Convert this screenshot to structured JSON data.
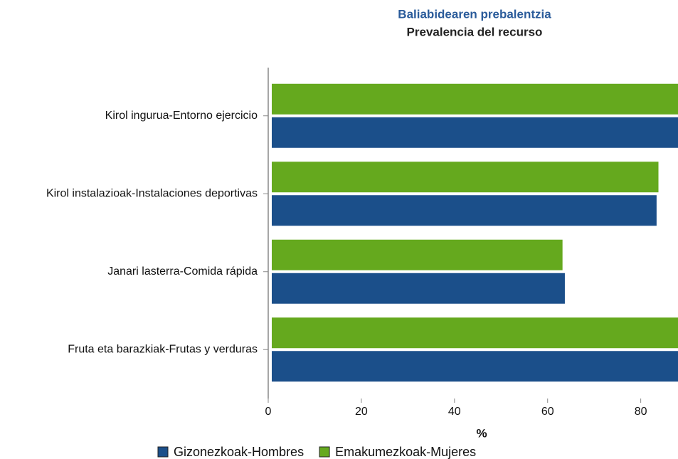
{
  "chart_data": {
    "type": "hbar",
    "title": "Baliabidearen prebalentzia",
    "subtitle": "Prevalencia del recurso",
    "xlabel": "%",
    "categories": [
      "Kirol ingurua-Entorno ejercicio",
      "Kirol instalazioak-Instalaciones deportivas",
      "Janari lasterra-Comida rápida",
      "Fruta eta barazkiak-Frutas y verduras"
    ],
    "series": [
      {
        "name": "Gizonezkoak-Hombres",
        "color": "#1b4f8a",
        "values": [
          92,
          83.4,
          63.7,
          95
        ]
      },
      {
        "name": "Emakumezkoak-Mujeres",
        "color": "#65a91e",
        "values": [
          91,
          83.8,
          63.2,
          94
        ]
      }
    ],
    "xlim": [
      0,
      88
    ],
    "xticks": [
      0,
      20,
      40,
      60,
      80
    ],
    "legend": "bottom"
  }
}
